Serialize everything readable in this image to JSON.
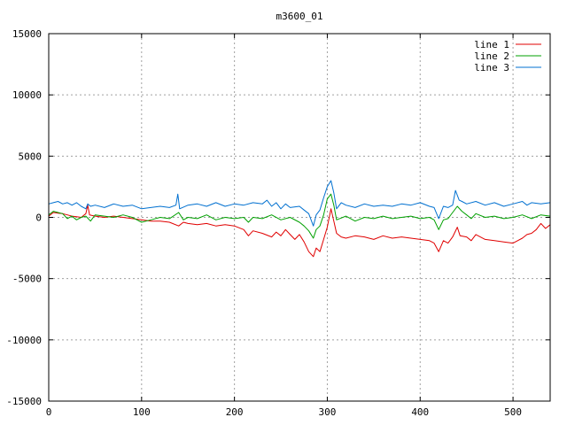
{
  "chart_data": {
    "type": "line",
    "title": "m3600_01",
    "xlabel": "",
    "ylabel": "",
    "xlim": [
      0,
      540
    ],
    "ylim": [
      -15000,
      15000
    ],
    "xticks": [
      0,
      100,
      200,
      300,
      400,
      500
    ],
    "yticks": [
      -15000,
      -10000,
      -5000,
      0,
      5000,
      10000,
      15000
    ],
    "grid": true,
    "legend_position": "top-right",
    "series": [
      {
        "name": "line 1",
        "color": "#e00000",
        "points": [
          [
            0,
            100
          ],
          [
            5,
            400
          ],
          [
            10,
            350
          ],
          [
            15,
            300
          ],
          [
            20,
            200
          ],
          [
            25,
            100
          ],
          [
            30,
            50
          ],
          [
            35,
            0
          ],
          [
            40,
            300
          ],
          [
            42,
            1000
          ],
          [
            44,
            200
          ],
          [
            50,
            100
          ],
          [
            60,
            0
          ],
          [
            70,
            100
          ],
          [
            80,
            0
          ],
          [
            90,
            -100
          ],
          [
            100,
            -200
          ],
          [
            110,
            -300
          ],
          [
            120,
            -300
          ],
          [
            130,
            -400
          ],
          [
            140,
            -700
          ],
          [
            145,
            -400
          ],
          [
            150,
            -500
          ],
          [
            160,
            -600
          ],
          [
            170,
            -500
          ],
          [
            180,
            -700
          ],
          [
            190,
            -600
          ],
          [
            200,
            -700
          ],
          [
            210,
            -1000
          ],
          [
            215,
            -1500
          ],
          [
            220,
            -1100
          ],
          [
            230,
            -1300
          ],
          [
            240,
            -1600
          ],
          [
            245,
            -1200
          ],
          [
            250,
            -1500
          ],
          [
            255,
            -1000
          ],
          [
            260,
            -1400
          ],
          [
            265,
            -1800
          ],
          [
            270,
            -1400
          ],
          [
            275,
            -2000
          ],
          [
            280,
            -2800
          ],
          [
            285,
            -3200
          ],
          [
            288,
            -2500
          ],
          [
            292,
            -2800
          ],
          [
            296,
            -1800
          ],
          [
            300,
            -800
          ],
          [
            304,
            700
          ],
          [
            307,
            -300
          ],
          [
            310,
            -1300
          ],
          [
            315,
            -1600
          ],
          [
            320,
            -1700
          ],
          [
            330,
            -1500
          ],
          [
            340,
            -1600
          ],
          [
            350,
            -1800
          ],
          [
            360,
            -1500
          ],
          [
            370,
            -1700
          ],
          [
            380,
            -1600
          ],
          [
            390,
            -1700
          ],
          [
            400,
            -1800
          ],
          [
            410,
            -1900
          ],
          [
            415,
            -2100
          ],
          [
            420,
            -2800
          ],
          [
            425,
            -1900
          ],
          [
            430,
            -2100
          ],
          [
            435,
            -1600
          ],
          [
            440,
            -800
          ],
          [
            443,
            -1500
          ],
          [
            450,
            -1600
          ],
          [
            455,
            -1900
          ],
          [
            460,
            -1400
          ],
          [
            470,
            -1800
          ],
          [
            480,
            -1900
          ],
          [
            490,
            -2000
          ],
          [
            500,
            -2100
          ],
          [
            505,
            -1900
          ],
          [
            510,
            -1700
          ],
          [
            515,
            -1400
          ],
          [
            520,
            -1300
          ],
          [
            525,
            -1000
          ],
          [
            530,
            -500
          ],
          [
            535,
            -900
          ],
          [
            540,
            -600
          ]
        ]
      },
      {
        "name": "line 2",
        "color": "#00a000",
        "points": [
          [
            0,
            200
          ],
          [
            5,
            500
          ],
          [
            10,
            400
          ],
          [
            15,
            300
          ],
          [
            20,
            -100
          ],
          [
            25,
            100
          ],
          [
            30,
            -200
          ],
          [
            35,
            0
          ],
          [
            40,
            100
          ],
          [
            45,
            -300
          ],
          [
            50,
            200
          ],
          [
            60,
            100
          ],
          [
            70,
            0
          ],
          [
            80,
            200
          ],
          [
            90,
            0
          ],
          [
            95,
            -200
          ],
          [
            100,
            -400
          ],
          [
            110,
            -200
          ],
          [
            120,
            0
          ],
          [
            130,
            -100
          ],
          [
            140,
            400
          ],
          [
            145,
            -200
          ],
          [
            150,
            0
          ],
          [
            160,
            -100
          ],
          [
            170,
            200
          ],
          [
            180,
            -200
          ],
          [
            190,
            0
          ],
          [
            200,
            -100
          ],
          [
            210,
            0
          ],
          [
            215,
            -400
          ],
          [
            220,
            0
          ],
          [
            230,
            -100
          ],
          [
            240,
            200
          ],
          [
            250,
            -200
          ],
          [
            260,
            0
          ],
          [
            270,
            -400
          ],
          [
            275,
            -700
          ],
          [
            280,
            -1100
          ],
          [
            285,
            -1700
          ],
          [
            288,
            -1000
          ],
          [
            292,
            -700
          ],
          [
            296,
            200
          ],
          [
            300,
            1500
          ],
          [
            304,
            1900
          ],
          [
            307,
            1000
          ],
          [
            310,
            -200
          ],
          [
            320,
            100
          ],
          [
            330,
            -300
          ],
          [
            340,
            0
          ],
          [
            350,
            -100
          ],
          [
            360,
            100
          ],
          [
            370,
            -100
          ],
          [
            380,
            0
          ],
          [
            390,
            100
          ],
          [
            400,
            -100
          ],
          [
            410,
            0
          ],
          [
            415,
            -200
          ],
          [
            420,
            -1000
          ],
          [
            425,
            -200
          ],
          [
            430,
            -100
          ],
          [
            435,
            400
          ],
          [
            440,
            900
          ],
          [
            445,
            500
          ],
          [
            450,
            200
          ],
          [
            455,
            -100
          ],
          [
            460,
            300
          ],
          [
            470,
            0
          ],
          [
            480,
            100
          ],
          [
            490,
            -100
          ],
          [
            500,
            0
          ],
          [
            510,
            200
          ],
          [
            520,
            -100
          ],
          [
            530,
            200
          ],
          [
            540,
            100
          ]
        ]
      },
      {
        "name": "line 3",
        "color": "#0070d0",
        "points": [
          [
            0,
            1100
          ],
          [
            5,
            1200
          ],
          [
            10,
            1300
          ],
          [
            15,
            1100
          ],
          [
            20,
            1200
          ],
          [
            25,
            1000
          ],
          [
            30,
            1200
          ],
          [
            35,
            900
          ],
          [
            40,
            700
          ],
          [
            42,
            1100
          ],
          [
            45,
            900
          ],
          [
            50,
            1000
          ],
          [
            60,
            800
          ],
          [
            70,
            1100
          ],
          [
            80,
            900
          ],
          [
            90,
            1000
          ],
          [
            100,
            700
          ],
          [
            110,
            800
          ],
          [
            120,
            900
          ],
          [
            130,
            800
          ],
          [
            137,
            1000
          ],
          [
            139,
            1900
          ],
          [
            141,
            700
          ],
          [
            150,
            1000
          ],
          [
            160,
            1100
          ],
          [
            170,
            900
          ],
          [
            180,
            1200
          ],
          [
            190,
            900
          ],
          [
            200,
            1100
          ],
          [
            210,
            1000
          ],
          [
            220,
            1200
          ],
          [
            230,
            1100
          ],
          [
            235,
            1400
          ],
          [
            240,
            900
          ],
          [
            245,
            1200
          ],
          [
            250,
            700
          ],
          [
            255,
            1100
          ],
          [
            260,
            800
          ],
          [
            270,
            900
          ],
          [
            275,
            600
          ],
          [
            280,
            300
          ],
          [
            285,
            -700
          ],
          [
            288,
            200
          ],
          [
            292,
            600
          ],
          [
            296,
            1600
          ],
          [
            300,
            2500
          ],
          [
            304,
            3000
          ],
          [
            307,
            2000
          ],
          [
            310,
            700
          ],
          [
            315,
            1200
          ],
          [
            320,
            1000
          ],
          [
            330,
            800
          ],
          [
            340,
            1100
          ],
          [
            350,
            900
          ],
          [
            360,
            1000
          ],
          [
            370,
            900
          ],
          [
            380,
            1100
          ],
          [
            390,
            1000
          ],
          [
            400,
            1200
          ],
          [
            410,
            900
          ],
          [
            415,
            800
          ],
          [
            420,
            -100
          ],
          [
            425,
            900
          ],
          [
            430,
            800
          ],
          [
            435,
            1000
          ],
          [
            438,
            2200
          ],
          [
            442,
            1400
          ],
          [
            445,
            1300
          ],
          [
            450,
            1100
          ],
          [
            460,
            1300
          ],
          [
            470,
            1000
          ],
          [
            480,
            1200
          ],
          [
            490,
            900
          ],
          [
            500,
            1100
          ],
          [
            510,
            1300
          ],
          [
            515,
            1000
          ],
          [
            520,
            1200
          ],
          [
            530,
            1100
          ],
          [
            540,
            1200
          ]
        ]
      }
    ]
  }
}
